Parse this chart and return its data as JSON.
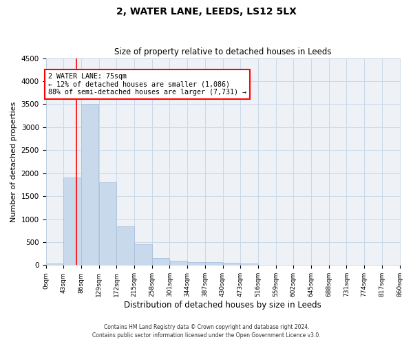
{
  "title": "2, WATER LANE, LEEDS, LS12 5LX",
  "subtitle": "Size of property relative to detached houses in Leeds",
  "xlabel": "Distribution of detached houses by size in Leeds",
  "ylabel": "Number of detached properties",
  "bar_color": "#c9d9ec",
  "bar_edgecolor": "#a8c0dc",
  "grid_color": "#c8d8e8",
  "bg_color": "#eef2f7",
  "property_line_x": 75,
  "property_line_color": "red",
  "annotation_text": "2 WATER LANE: 75sqm\n← 12% of detached houses are smaller (1,086)\n88% of semi-detached houses are larger (7,731) →",
  "bin_edges": [
    0,
    43,
    86,
    129,
    172,
    215,
    258,
    301,
    344,
    387,
    430,
    473,
    516,
    559,
    602,
    645,
    688,
    731,
    774,
    817,
    860
  ],
  "bin_counts": [
    30,
    1900,
    3500,
    1800,
    850,
    450,
    160,
    100,
    60,
    60,
    50,
    35,
    0,
    0,
    0,
    0,
    0,
    0,
    0,
    0
  ],
  "ylim": [
    0,
    4500
  ],
  "yticks": [
    0,
    500,
    1000,
    1500,
    2000,
    2500,
    3000,
    3500,
    4000,
    4500
  ],
  "footnote1": "Contains HM Land Registry data © Crown copyright and database right 2024.",
  "footnote2": "Contains public sector information licensed under the Open Government Licence v3.0."
}
